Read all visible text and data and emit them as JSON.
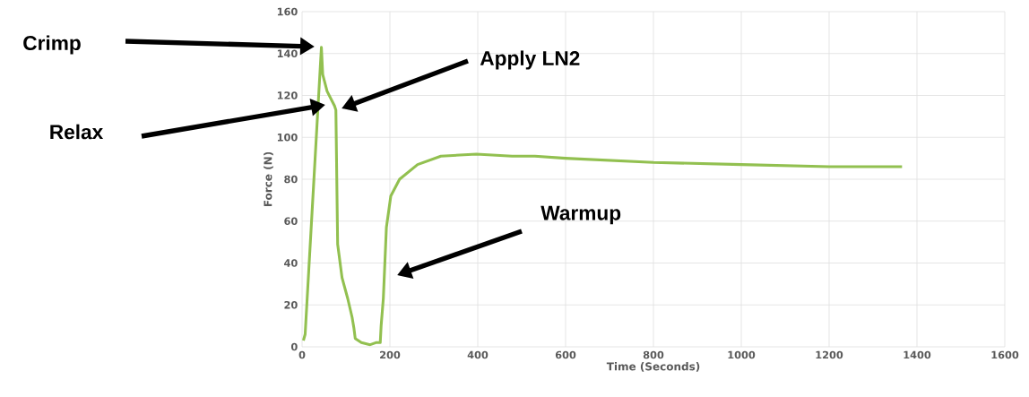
{
  "chart_data": {
    "type": "line",
    "xlabel": "Time (Seconds)",
    "ylabel": "Force (N)",
    "x": [
      3,
      7,
      44,
      47,
      57,
      74,
      77,
      81,
      91,
      104,
      114,
      118,
      121,
      135,
      155,
      168,
      178,
      180,
      185,
      192,
      202,
      222,
      263,
      316,
      397,
      478,
      530,
      600,
      800,
      1000,
      1200,
      1366
    ],
    "series": [
      {
        "color": "#92c050",
        "values": [
          3,
          6,
          143,
          130,
          122,
          115,
          113,
          49,
          33,
          23,
          14,
          9,
          4,
          2,
          1,
          2,
          2,
          10,
          23,
          57,
          72,
          80,
          87,
          91,
          92,
          91,
          91,
          90,
          88,
          87,
          86,
          86
        ]
      }
    ],
    "xlim": [
      0,
      1600
    ],
    "ylim": [
      0,
      160
    ],
    "xticks": [
      0,
      200,
      400,
      600,
      800,
      1000,
      1200,
      1400,
      1600
    ],
    "yticks": [
      0,
      20,
      40,
      60,
      80,
      100,
      120,
      140,
      160
    ],
    "grid": true,
    "annotations": [
      "Crimp",
      "Relax",
      "Apply LN2",
      "Warmup"
    ]
  }
}
